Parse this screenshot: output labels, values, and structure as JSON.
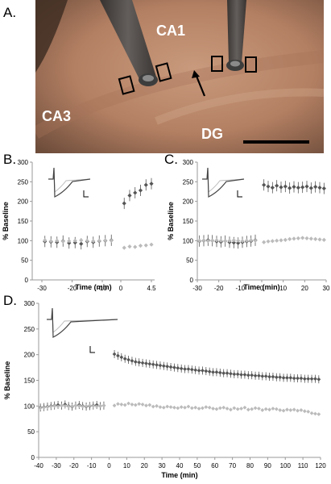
{
  "panels": {
    "A": "A.",
    "B": "B.",
    "C": "C.",
    "D": "D."
  },
  "photo": {
    "labels": {
      "ca1": "CA1",
      "ca3": "CA3",
      "dg": "DG"
    },
    "colors": {
      "tissue": "#b8876a",
      "electrode": "#3a3a3a",
      "label": "#ffffff"
    }
  },
  "axis_text": {
    "ylabel": "% Baseline",
    "xlabel": "Time (min)"
  },
  "chart_data": [
    {
      "id": "B",
      "type": "scatter",
      "xlabel": "Time (min)",
      "ylabel": "% Baseline",
      "ylim": [
        0,
        300
      ],
      "yticks": [
        0,
        50,
        100,
        150,
        200,
        250,
        300
      ],
      "xtick_labels": [
        "-30",
        "-20",
        "-10",
        "0",
        "4.5"
      ],
      "series": [
        {
          "color": "#555555",
          "marker": "diamond-errorbar",
          "x": [
            -29,
            -27,
            -25,
            -23,
            -21,
            -19,
            -17,
            -15,
            -13,
            -11,
            -9,
            -7,
            0.5,
            1.3,
            2.1,
            2.9,
            3.7,
            4.5
          ],
          "y": [
            98,
            97,
            96,
            99,
            94,
            95,
            92,
            98,
            96,
            99,
            100,
            101,
            195,
            215,
            222,
            228,
            242,
            245
          ]
        },
        {
          "color": "#bbbbbb",
          "marker": "diamond",
          "x": [
            -29,
            -27,
            -25,
            -23,
            -21,
            -19,
            -17,
            -15,
            -13,
            -11,
            -9,
            -7,
            0.5,
            1.3,
            2.1,
            2.9,
            3.7,
            4.5
          ],
          "y": [
            101,
            99,
            100,
            98,
            99,
            100,
            101,
            100,
            99,
            100,
            101,
            100,
            82,
            85,
            84,
            87,
            88,
            90
          ]
        }
      ]
    },
    {
      "id": "C",
      "type": "scatter",
      "xlabel": "Time (min)",
      "ylabel": "% Baseline",
      "ylim": [
        0,
        300
      ],
      "yticks": [
        0,
        50,
        100,
        150,
        200,
        250,
        300
      ],
      "xtick_labels": [
        "-30",
        "-20",
        "-10",
        "0",
        "10",
        "20",
        "30"
      ],
      "series": [
        {
          "color": "#555555",
          "marker": "diamond-errorbar",
          "x": [
            -29,
            -27,
            -25,
            -23,
            -21,
            -19,
            -17,
            -15,
            -13,
            -11,
            -9,
            -7,
            -5,
            -3,
            1,
            3,
            5,
            7,
            9,
            11,
            13,
            15,
            17,
            19,
            21,
            23,
            25,
            27,
            29
          ],
          "y": [
            99,
            100,
            101,
            100,
            98,
            97,
            99,
            96,
            95,
            94,
            96,
            98,
            99,
            101,
            242,
            238,
            235,
            240,
            236,
            238,
            234,
            237,
            235,
            236,
            238,
            234,
            237,
            235,
            233
          ]
        },
        {
          "color": "#bbbbbb",
          "marker": "diamond",
          "x": [
            -29,
            -27,
            -25,
            -23,
            -21,
            -19,
            -17,
            -15,
            -13,
            -11,
            -9,
            -7,
            -5,
            -3,
            1,
            3,
            5,
            7,
            9,
            11,
            13,
            15,
            17,
            19,
            21,
            23,
            25,
            27,
            29
          ],
          "y": [
            100,
            101,
            99,
            100,
            101,
            100,
            99,
            100,
            101,
            100,
            99,
            100,
            101,
            100,
            96,
            98,
            99,
            100,
            101,
            102,
            104,
            105,
            106,
            107,
            106,
            105,
            104,
            103,
            102
          ]
        }
      ]
    },
    {
      "id": "D",
      "type": "scatter",
      "xlabel": "Time (min)",
      "ylabel": "% Baseline",
      "xlim": [
        -40,
        120
      ],
      "ylim": [
        0,
        300
      ],
      "yticks": [
        0,
        50,
        100,
        150,
        200,
        250,
        300
      ],
      "xticks": [
        -40,
        -30,
        -20,
        -10,
        0,
        10,
        20,
        30,
        40,
        50,
        60,
        70,
        80,
        90,
        100,
        110,
        120
      ],
      "series": [
        {
          "color": "#555555",
          "marker": "diamond-errorbar",
          "x": [
            -39,
            -37,
            -35,
            -33,
            -31,
            -29,
            -27,
            -25,
            -23,
            -21,
            -19,
            -17,
            -15,
            -13,
            -11,
            -9,
            -7,
            -5,
            -3,
            3,
            5,
            7,
            9,
            11,
            13,
            15,
            17,
            19,
            21,
            23,
            25,
            27,
            29,
            31,
            33,
            35,
            37,
            39,
            41,
            43,
            45,
            47,
            49,
            51,
            53,
            55,
            57,
            59,
            61,
            63,
            65,
            67,
            69,
            71,
            73,
            75,
            77,
            79,
            81,
            83,
            85,
            87,
            89,
            91,
            93,
            95,
            97,
            99,
            101,
            103,
            105,
            107,
            109,
            111,
            113,
            115,
            117,
            119
          ],
          "y": [
            97,
            98,
            99,
            100,
            101,
            102,
            101,
            103,
            100,
            99,
            101,
            102,
            100,
            99,
            100,
            101,
            102,
            100,
            101,
            201,
            198,
            195,
            192,
            190,
            188,
            186,
            185,
            184,
            183,
            182,
            181,
            180,
            179,
            178,
            177,
            176,
            175,
            174,
            173,
            172,
            172,
            171,
            170,
            169,
            169,
            168,
            167,
            166,
            166,
            165,
            164,
            164,
            163,
            162,
            162,
            161,
            161,
            160,
            160,
            159,
            159,
            158,
            158,
            157,
            157,
            156,
            156,
            155,
            155,
            155,
            154,
            154,
            154,
            153,
            153,
            153,
            153,
            152
          ]
        },
        {
          "color": "#bbbbbb",
          "marker": "diamond",
          "x": [
            -39,
            -37,
            -35,
            -33,
            -31,
            -29,
            -27,
            -25,
            -23,
            -21,
            -19,
            -17,
            -15,
            -13,
            -11,
            -9,
            -7,
            -5,
            -3,
            3,
            5,
            7,
            9,
            11,
            13,
            15,
            17,
            19,
            21,
            23,
            25,
            27,
            29,
            31,
            33,
            35,
            37,
            39,
            41,
            43,
            45,
            47,
            49,
            51,
            53,
            55,
            57,
            59,
            61,
            63,
            65,
            67,
            69,
            71,
            73,
            75,
            77,
            79,
            81,
            83,
            85,
            87,
            89,
            91,
            93,
            95,
            97,
            99,
            101,
            103,
            105,
            107,
            109,
            111,
            113,
            115,
            117,
            119
          ],
          "y": [
            96,
            97,
            98,
            99,
            100,
            99,
            101,
            100,
            99,
            100,
            101,
            100,
            99,
            100,
            101,
            100,
            99,
            100,
            101,
            101,
            104,
            103,
            102,
            105,
            103,
            102,
            104,
            103,
            101,
            102,
            99,
            100,
            98,
            97,
            99,
            98,
            97,
            96,
            98,
            97,
            99,
            96,
            97,
            95,
            96,
            98,
            97,
            95,
            94,
            96,
            97,
            95,
            93,
            96,
            94,
            95,
            97,
            93,
            94,
            96,
            95,
            92,
            94,
            93,
            95,
            94,
            92,
            91,
            93,
            92,
            93,
            91,
            92,
            90,
            89,
            86,
            85,
            84
          ]
        }
      ]
    }
  ]
}
